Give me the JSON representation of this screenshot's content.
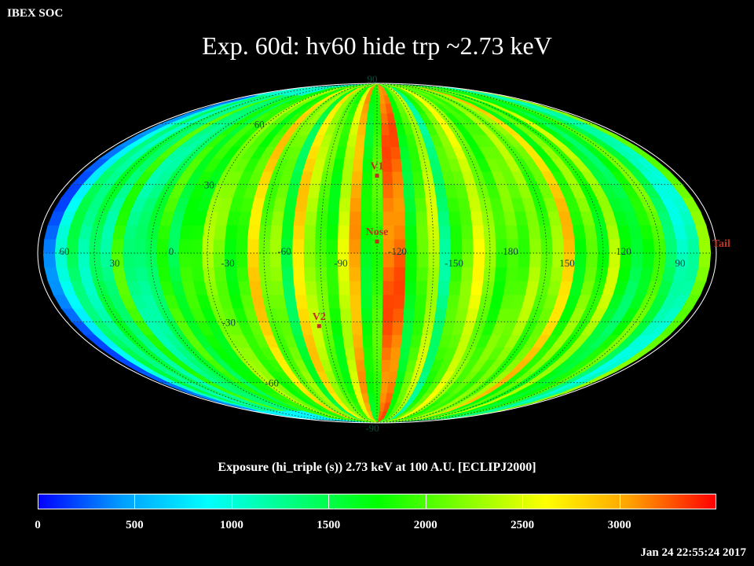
{
  "header": {
    "label": "IBEX SOC"
  },
  "title": "Exp.   60d: hv60 hide trp ~2.73 keV",
  "map": {
    "projection": "mollweide",
    "lat_labels": [
      "90",
      "60",
      "30",
      "-30",
      "-60",
      "-90"
    ],
    "lon_labels": [
      "60",
      "30",
      "0",
      "-30",
      "-60",
      "-90",
      "-120",
      "-150",
      "180",
      "150",
      "120",
      "90"
    ],
    "markers": [
      {
        "name": "V1",
        "lon": 255,
        "lat": 34,
        "color": "#c03020"
      },
      {
        "name": "V2",
        "lon": 289,
        "lat": -32,
        "color": "#c03020"
      },
      {
        "name": "Nose",
        "lon": 255,
        "lat": 5,
        "color": "#c03020"
      },
      {
        "name": "Tail",
        "lon": 75,
        "lat": 0,
        "color": "#c03020"
      }
    ],
    "label_color": "#0a4a3a"
  },
  "colorbar": {
    "caption": "Exposure (hi_triple (s))  2.73 keV at 100 A.U. [ECLIPJ2000]",
    "min": 0,
    "max": 3500,
    "tick_values": [
      0,
      500,
      1000,
      1500,
      2000,
      2500,
      3000
    ],
    "tick_labels": [
      "0",
      "500",
      "1000",
      "1500",
      "2000",
      "2500",
      "3000"
    ],
    "stops": [
      "#0000ff",
      "#00a0ff",
      "#00ffff",
      "#00ff80",
      "#00ff00",
      "#80ff00",
      "#ffff00",
      "#ffa000",
      "#ff0000"
    ]
  },
  "timestamp": "Jan 24 22:55:24 2017"
}
